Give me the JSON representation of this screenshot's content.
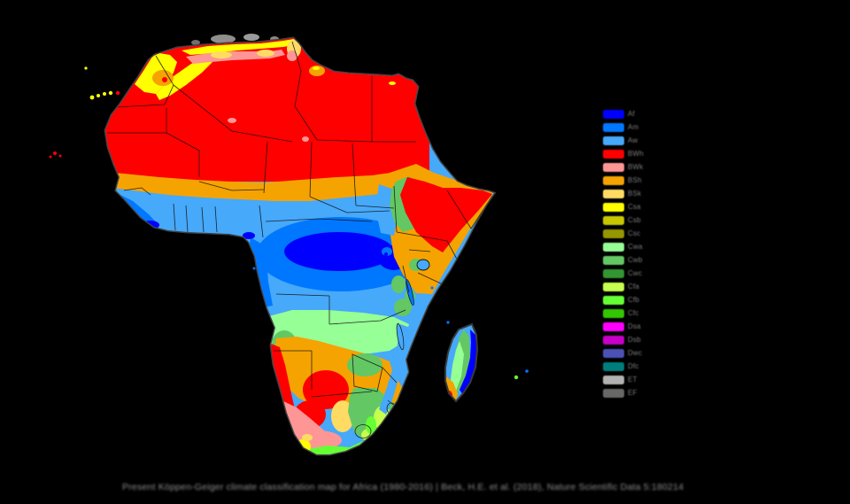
{
  "palette": {
    "Af": "#0000FE",
    "Am": "#0077FF",
    "Aw": "#46A9FA",
    "BWh": "#FE0000",
    "BWk": "#FE9695",
    "BSh": "#F5A301",
    "BSk": "#FFDB63",
    "Csa": "#FFFF00",
    "Csb": "#C6C700",
    "Csc": "#969600",
    "Cwa": "#96FF96",
    "Cwb": "#63C764",
    "Cwc": "#329633",
    "Cfa": "#C6FF4E",
    "Cfb": "#66FF33",
    "Cfc": "#33C701",
    "Dsa": "#FF00FE",
    "Dsb": "#C600C7",
    "Dwc": "#4C51B5",
    "Dfc": "#007E7D",
    "ET": "#B2B2B2",
    "EF": "#686866"
  },
  "legend": {
    "items": [
      {
        "code": "Af",
        "color": "#0000FE"
      },
      {
        "code": "Am",
        "color": "#0077FF"
      },
      {
        "code": "Aw",
        "color": "#46A9FA"
      },
      {
        "code": "BWh",
        "color": "#FE0000"
      },
      {
        "code": "BWk",
        "color": "#FE9695"
      },
      {
        "code": "BSh",
        "color": "#F5A301"
      },
      {
        "code": "BSk",
        "color": "#FFDB63"
      },
      {
        "code": "Csa",
        "color": "#FFFF00"
      },
      {
        "code": "Csb",
        "color": "#C6C700"
      },
      {
        "code": "Csc",
        "color": "#969600"
      },
      {
        "code": "Cwa",
        "color": "#96FF96"
      },
      {
        "code": "Cwb",
        "color": "#63C764"
      },
      {
        "code": "Cwc",
        "color": "#329633"
      },
      {
        "code": "Cfa",
        "color": "#C6FF4E"
      },
      {
        "code": "Cfb",
        "color": "#66FF33"
      },
      {
        "code": "Cfc",
        "color": "#33C701"
      },
      {
        "code": "Dsa",
        "color": "#FF00FE"
      },
      {
        "code": "Dsb",
        "color": "#C600C7"
      },
      {
        "code": "Dwc",
        "color": "#4C51B5"
      },
      {
        "code": "Dfc",
        "color": "#007E7D"
      },
      {
        "code": "ET",
        "color": "#B2B2B2"
      },
      {
        "code": "EF",
        "color": "#686866"
      }
    ]
  },
  "caption": {
    "text": "Present Köppen-Geiger climate classification map for Africa (1980-2016) | Beck, H.E. et al. (2018), Nature Scientific Data 5:180214"
  }
}
